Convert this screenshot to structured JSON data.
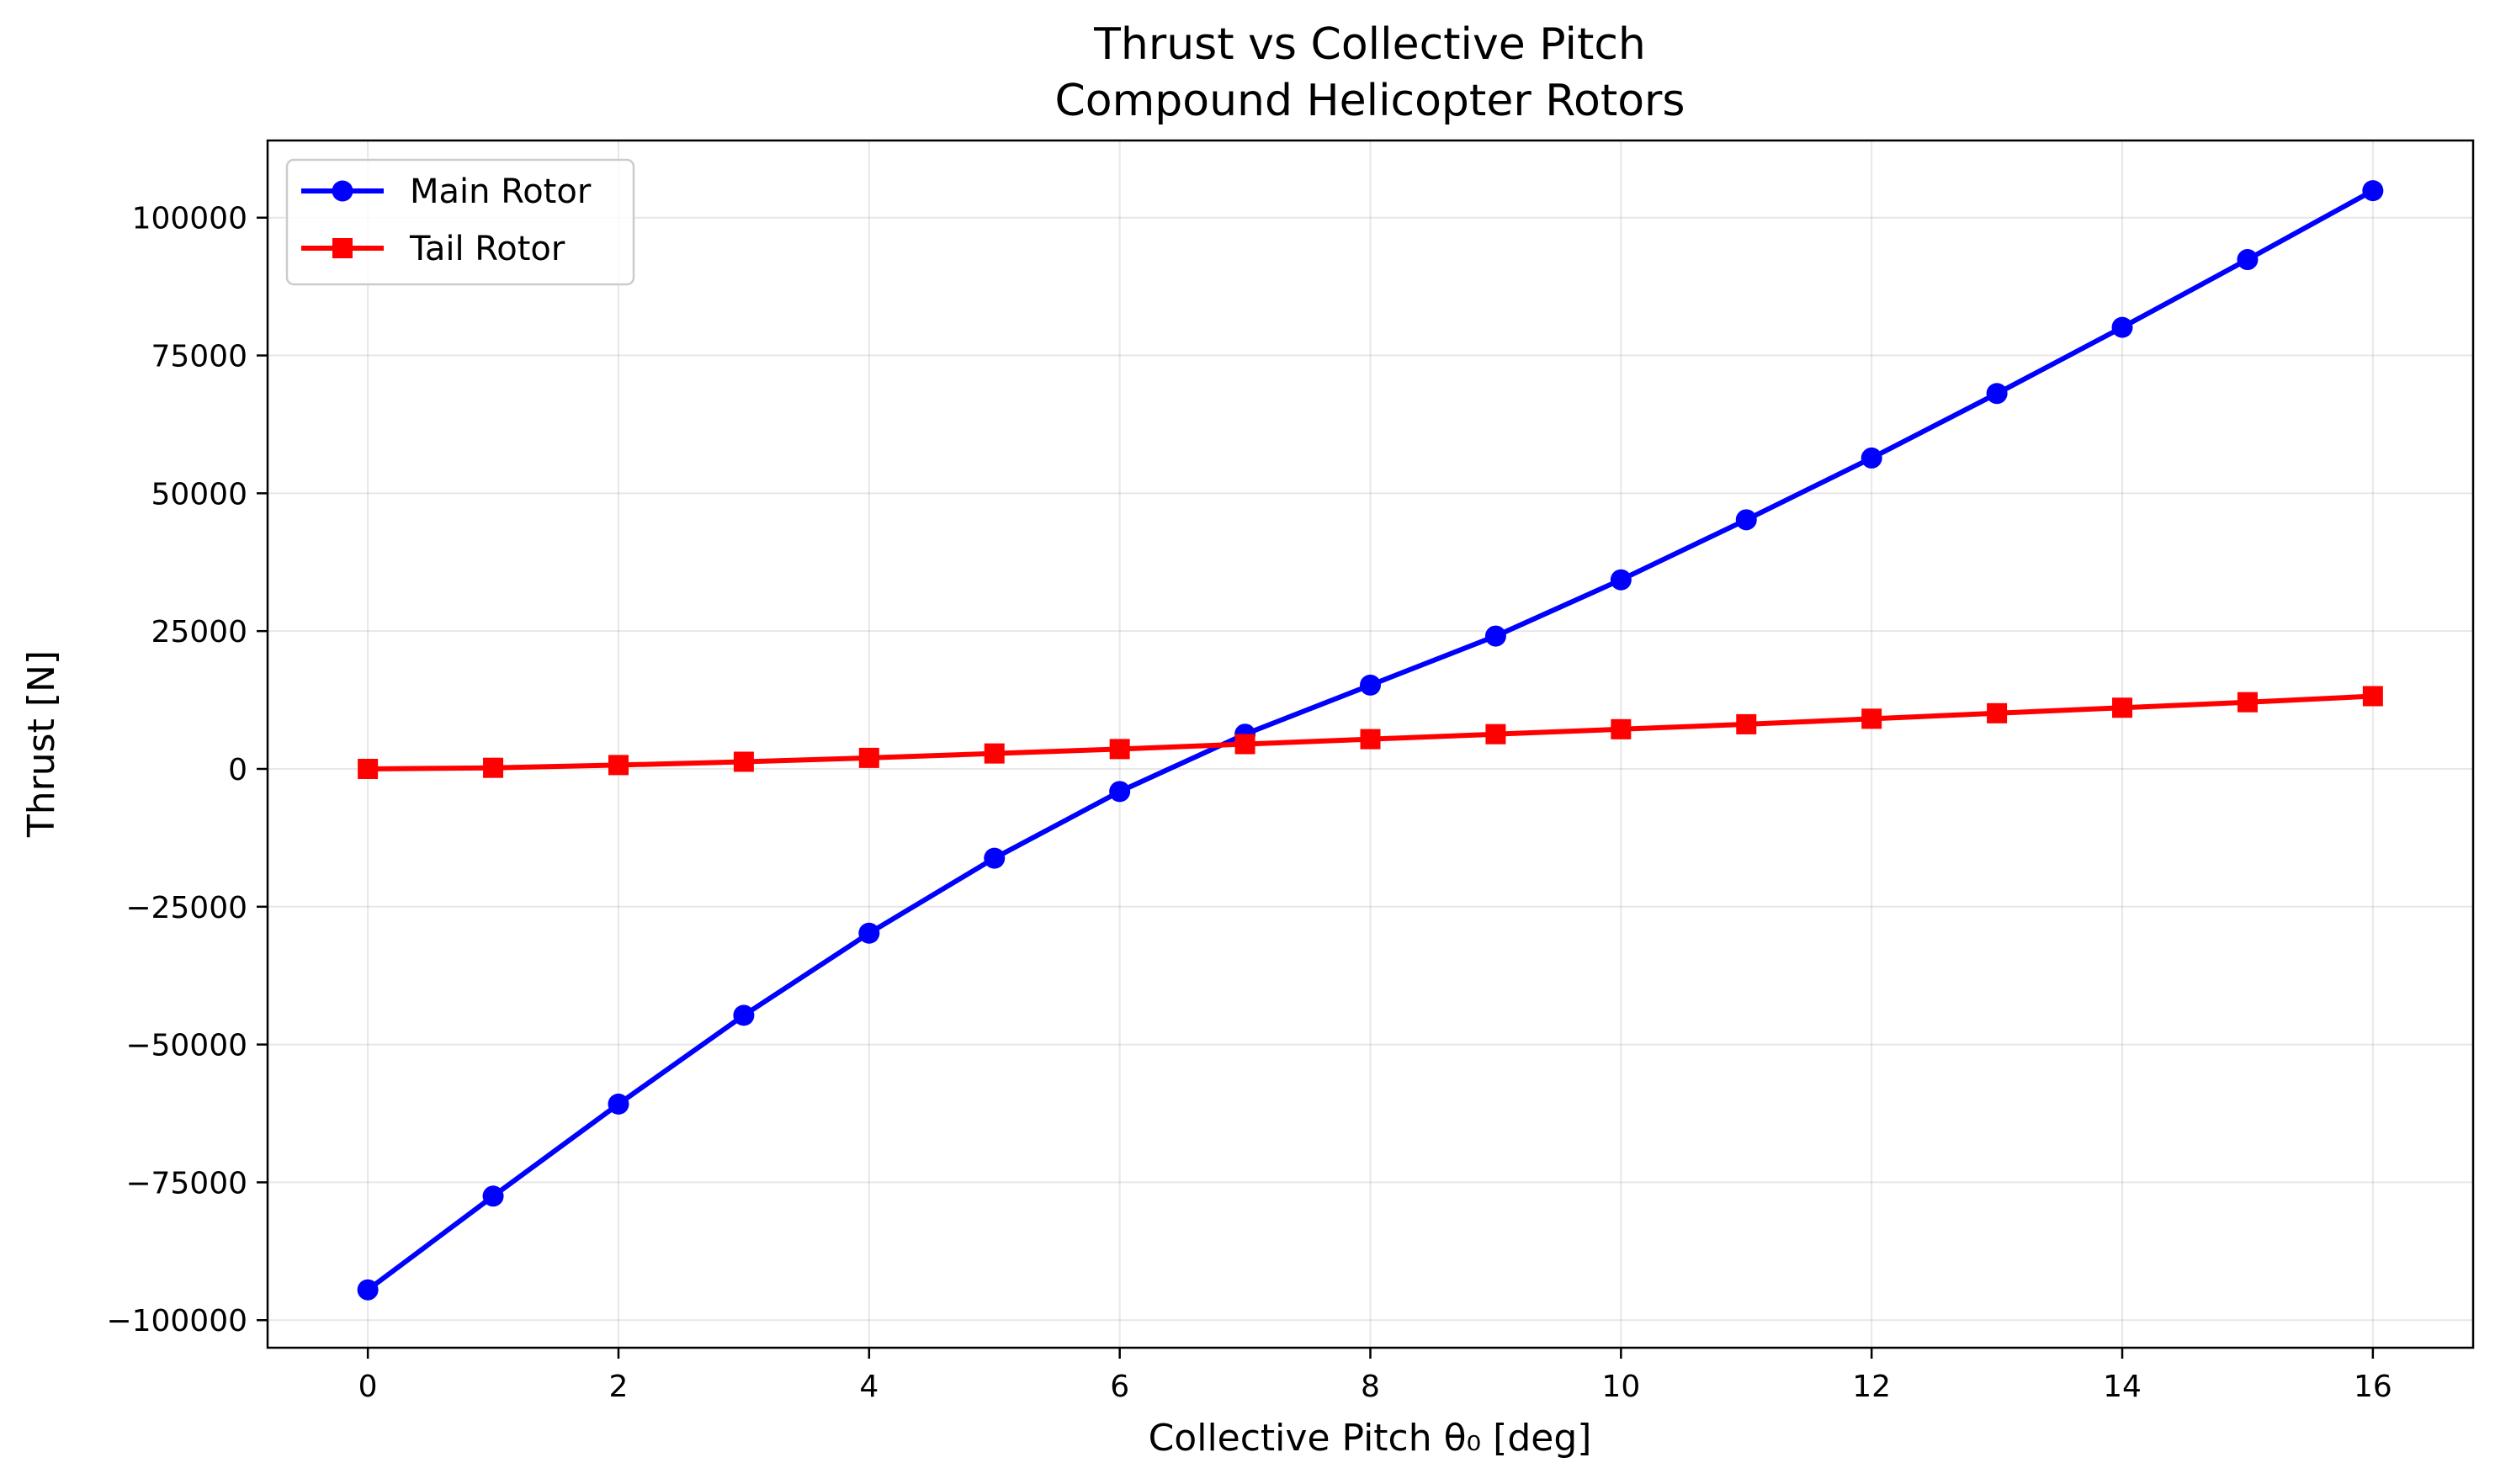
{
  "chart_data": {
    "type": "line",
    "title": "Thrust vs Collective Pitch",
    "subtitle": "Compound Helicopter Rotors",
    "xlabel": "Collective Pitch θ₀ [deg]",
    "ylabel": "Thrust [N]",
    "xlim": [
      -0.8,
      16.8
    ],
    "ylim": [
      -105000,
      114000
    ],
    "x_ticks": [
      0,
      2,
      4,
      6,
      8,
      10,
      12,
      14,
      16
    ],
    "y_ticks": [
      -100000,
      -75000,
      -50000,
      -25000,
      0,
      25000,
      50000,
      75000,
      100000
    ],
    "x_tick_labels": [
      "0",
      "2",
      "4",
      "6",
      "8",
      "10",
      "12",
      "14",
      "16"
    ],
    "y_tick_labels": [
      "−100000",
      "−75000",
      "−50000",
      "−25000",
      "0",
      "25000",
      "50000",
      "75000",
      "100000"
    ],
    "grid": true,
    "legend_position": "top-left",
    "x": [
      0,
      1,
      2,
      3,
      4,
      5,
      6,
      7,
      8,
      9,
      10,
      11,
      12,
      13,
      14,
      15,
      16
    ],
    "series": [
      {
        "name": "Main Rotor",
        "color": "#0000ff",
        "marker": "circle",
        "values": [
          -94500,
          -77500,
          -60800,
          -44700,
          -29800,
          -16200,
          -4100,
          6300,
          15200,
          24100,
          34300,
          45200,
          56400,
          68100,
          80100,
          92400,
          104900
        ]
      },
      {
        "name": "Tail Rotor",
        "color": "#ff0000",
        "marker": "square",
        "values": [
          0,
          200,
          700,
          1300,
          2000,
          2800,
          3600,
          4500,
          5400,
          6300,
          7200,
          8100,
          9100,
          10100,
          11100,
          12100,
          13200
        ]
      }
    ]
  }
}
